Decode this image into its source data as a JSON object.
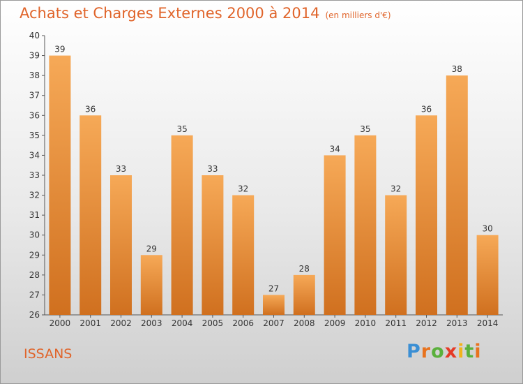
{
  "header": {
    "title": "Achats et Charges Externes 2000 à 2014",
    "unit": "(en milliers d'€)"
  },
  "footer": {
    "commune": "ISSANS",
    "logo": "Proxiti"
  },
  "colors": {
    "bar_light": "#f6a957",
    "bar_dark": "#d0701f",
    "title": "#e0642a"
  },
  "chart_data": {
    "type": "bar",
    "title": "Achats et Charges Externes 2000 à 2014",
    "subtitle": "(en milliers d'€)",
    "categories": [
      "2000",
      "2001",
      "2002",
      "2003",
      "2004",
      "2005",
      "2006",
      "2007",
      "2008",
      "2009",
      "2010",
      "2011",
      "2012",
      "2013",
      "2014"
    ],
    "values": [
      39,
      36,
      33,
      29,
      35,
      33,
      32,
      27,
      28,
      34,
      35,
      32,
      36,
      38,
      30
    ],
    "ylim": [
      26,
      40
    ],
    "yticks": [
      26,
      27,
      28,
      29,
      30,
      31,
      32,
      33,
      34,
      35,
      36,
      37,
      38,
      39,
      40
    ],
    "grid": false,
    "data_labels": true
  }
}
